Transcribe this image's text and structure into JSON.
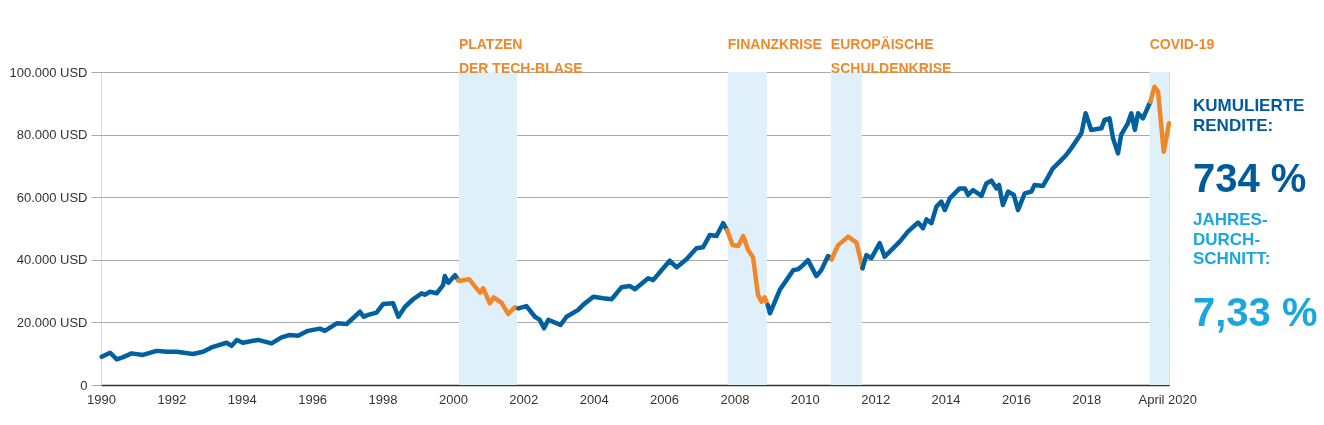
{
  "chart_data": {
    "type": "line",
    "xlim": [
      1990,
      2020.35
    ],
    "xticks": [
      1990,
      1992,
      1994,
      1996,
      1998,
      2000,
      2002,
      2004,
      2006,
      2008,
      2010,
      2012,
      2014,
      2016,
      2018,
      {
        "value": 2020.3,
        "label": "April 2020"
      }
    ],
    "ylim": [
      0,
      100000
    ],
    "yticks": [
      0,
      {
        "value": 20000,
        "label": "20.000 USD"
      },
      {
        "value": 40000,
        "label": "40.000 USD"
      },
      {
        "value": 60000,
        "label": "60.000 USD"
      },
      {
        "value": 80000,
        "label": "80.000 USD"
      },
      {
        "value": 100000,
        "label": "100.000 USD"
      }
    ],
    "grid": "y",
    "series": [
      {
        "color": "#0060a0",
        "x": [
          1990.02,
          1990.26,
          1990.45,
          1990.63,
          1990.87,
          1991.19,
          1991.58,
          1991.87,
          1992.15,
          1992.61,
          1992.9,
          1993.14,
          1993.57,
          1993.71,
          1993.86,
          1994.03,
          1994.46,
          1994.85,
          1995.13,
          1995.37,
          1995.6,
          1995.88,
          1996.22,
          1996.36,
          1996.7,
          1996.98,
          1997.36,
          1997.47,
          1997.59,
          1997.83,
          1998.02,
          1998.3,
          1998.45,
          1998.64,
          1998.87,
          1999.11,
          1999.2,
          1999.35,
          1999.54,
          1999.72,
          1999.77,
          1999.87,
          2000.06,
          2000.15
        ],
        "values": [
          9000,
          10300,
          8200,
          8900,
          10100,
          9600,
          10900,
          10600,
          10600,
          9900,
          10600,
          12000,
          13500,
          12500,
          14400,
          13500,
          14400,
          13300,
          15200,
          16000,
          15700,
          17300,
          18000,
          17300,
          19700,
          19500,
          23400,
          21800,
          22400,
          23100,
          25900,
          26100,
          21800,
          25000,
          27400,
          29300,
          28800,
          29800,
          29300,
          31900,
          34800,
          32700,
          35100,
          33500
        ]
      },
      {
        "color": "#f0882a",
        "x": [
          2000.15,
          2000.2,
          2000.46,
          2000.77,
          2000.86,
          2001.05,
          2001.16,
          2001.38,
          2001.57,
          2001.76,
          2001.86
        ],
        "values": [
          33500,
          33300,
          33800,
          29500,
          30900,
          26100,
          28000,
          26300,
          22700,
          24800,
          24500
        ]
      },
      {
        "color": "#0060a0",
        "x": [
          2001.86,
          2002.09,
          2002.33,
          2002.47,
          2002.59,
          2002.71,
          2003.06,
          2003.23,
          2003.56,
          2003.7,
          2003.99,
          2004.27,
          2004.51,
          2004.79,
          2005.03,
          2005.17,
          2005.55,
          2005.69,
          2006.16,
          2006.36,
          2006.64,
          2006.92,
          2007.11,
          2007.3,
          2007.49,
          2007.68,
          2007.79
        ],
        "values": [
          24500,
          25200,
          21800,
          20800,
          18100,
          20800,
          19200,
          21800,
          24000,
          25600,
          28200,
          27700,
          27400,
          31200,
          31600,
          30600,
          34100,
          33500,
          39700,
          37600,
          40200,
          43700,
          44000,
          47900,
          47600,
          51700,
          49500
        ]
      },
      {
        "color": "#f0882a",
        "x": [
          2007.79,
          2007.95,
          2008.11,
          2008.25,
          2008.39,
          2008.53,
          2008.67,
          2008.77,
          2008.86,
          2008.95
        ],
        "values": [
          49500,
          44700,
          44400,
          47600,
          43100,
          40800,
          28800,
          26600,
          28000,
          25500
        ]
      },
      {
        "color": "#0060a0",
        "x": [
          2008.95,
          2009.01,
          2009.29,
          2009.48,
          2009.67,
          2009.81,
          2009.95,
          2010.09,
          2010.33,
          2010.47,
          2010.66,
          2010.76
        ],
        "values": [
          25500,
          22900,
          30400,
          33500,
          36700,
          37000,
          38300,
          39900,
          34800,
          36700,
          41200,
          40200
        ]
      },
      {
        "color": "#f0882a",
        "x": [
          2010.76,
          2010.95,
          2011.23,
          2011.47,
          2011.64
        ],
        "values": [
          40200,
          44700,
          47400,
          45500,
          37300
        ]
      },
      {
        "color": "#0060a0",
        "x": [
          2011.64,
          2011.75,
          2011.89,
          2012.13,
          2012.27,
          2012.7,
          2012.93,
          2013.22,
          2013.36,
          2013.46,
          2013.6,
          2013.74,
          2013.88,
          2013.98,
          2014.12,
          2014.4,
          2014.55,
          2014.64,
          2014.78,
          2015.02,
          2015.16,
          2015.3,
          2015.45,
          2015.52,
          2015.63,
          2015.78,
          2015.94,
          2016.06,
          2016.25,
          2016.44,
          2016.53,
          2016.77,
          2017.05,
          2017.24,
          2017.43,
          2017.57,
          2017.86,
          2017.98,
          2018.14,
          2018.43,
          2018.52,
          2018.66,
          2018.76,
          2018.9,
          2018.99,
          2019.18,
          2019.28,
          2019.38,
          2019.47,
          2019.61,
          2019.82
        ],
        "values": [
          37300,
          41500,
          40500,
          45300,
          41000,
          45800,
          49000,
          51900,
          50100,
          52900,
          51700,
          57000,
          58600,
          55900,
          59600,
          62800,
          62800,
          60700,
          62300,
          60400,
          64400,
          65300,
          62800,
          63900,
          57500,
          61800,
          60700,
          55900,
          61200,
          61800,
          63900,
          63600,
          69200,
          71300,
          73500,
          75600,
          80400,
          86800,
          81500,
          82000,
          84700,
          85200,
          78800,
          74000,
          79900,
          83600,
          86800,
          81500,
          86800,
          85200,
          90500
        ]
      },
      {
        "color": "#f0882a",
        "x": [
          2019.82,
          2019.94,
          2020.04,
          2020.2,
          2020.35
        ],
        "values": [
          90500,
          95300,
          93700,
          74500,
          83600
        ]
      }
    ],
    "bands": [
      {
        "axis": "x",
        "from": 2000.17,
        "to": 2001.82,
        "label": "PLATZEN\nDER TECH-BLASE",
        "color": "#dff0fa"
      },
      {
        "axis": "x",
        "from": 2007.81,
        "to": 2008.92,
        "label": "FINANZKRISE",
        "color": "#dff0fa"
      },
      {
        "axis": "x",
        "from": 2010.74,
        "to": 2011.62,
        "label": "EUROPÄISCHE\nSCHULDENKRISE",
        "color": "#dff0fa"
      },
      {
        "axis": "x",
        "from": 2019.8,
        "to": 2020.35,
        "label": "COVID-19",
        "color": "#dff0fa"
      }
    ],
    "annotations": [
      "KUMULIERTE\nRENDITE:",
      "734 %",
      "JAHRES-\nDURCH-\nSCHNITT:",
      "7,33 %"
    ]
  }
}
